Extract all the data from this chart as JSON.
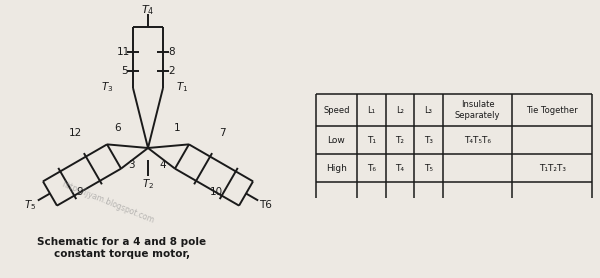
{
  "bg_color": "#ede9e3",
  "line_color": "#1a1a1a",
  "text_color": "#1a1a1a",
  "watermark": "http://ijyam.blogspot.com",
  "caption": "Schematic for a 4 and 8 pole\nconstant torque motor,",
  "table": {
    "headers": [
      "Speed",
      "L₁",
      "L₂",
      "L₃",
      "Insulate\nSeparately",
      "Tie Together"
    ],
    "rows": [
      [
        "Low",
        "T₁",
        "T₂",
        "T₃",
        "T₄T₅T₆",
        ""
      ],
      [
        "High",
        "T₆",
        "T₄",
        "T₅",
        "",
        "T₁T₂T₃"
      ]
    ]
  }
}
